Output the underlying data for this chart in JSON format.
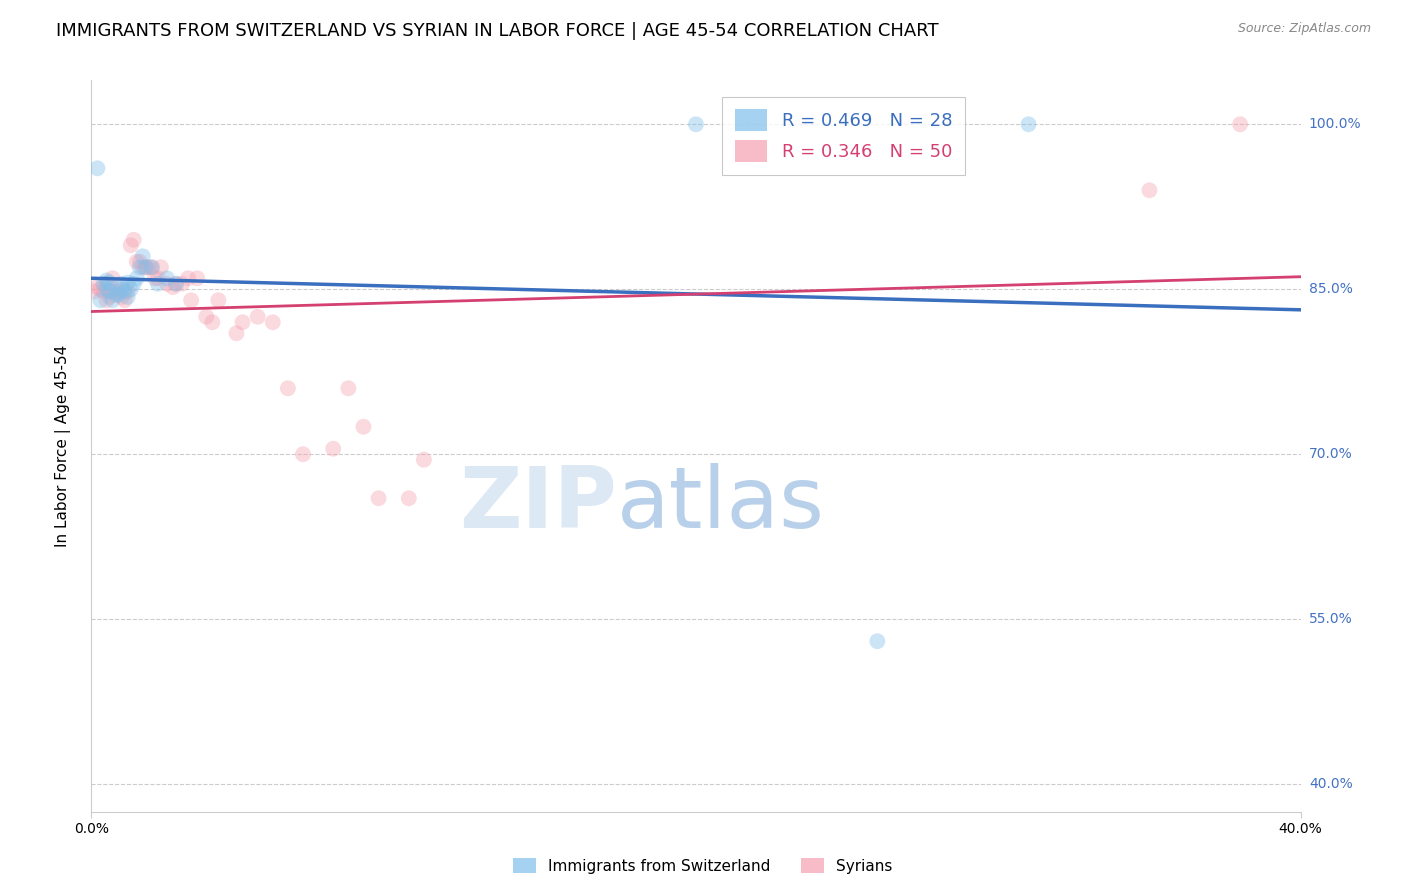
{
  "title": "IMMIGRANTS FROM SWITZERLAND VS SYRIAN IN LABOR FORCE | AGE 45-54 CORRELATION CHART",
  "source": "Source: ZipAtlas.com",
  "ylabel": "In Labor Force | Age 45-54",
  "yticks": [
    0.4,
    0.55,
    0.7,
    0.85,
    1.0
  ],
  "ytick_labels": [
    "40.0%",
    "55.0%",
    "70.0%",
    "85.0%",
    "100.0%"
  ],
  "xlim": [
    0.0,
    0.4
  ],
  "ylim": [
    0.375,
    1.04
  ],
  "swiss_R": 0.469,
  "swiss_N": 28,
  "syrian_R": 0.346,
  "syrian_N": 50,
  "swiss_color": "#7fbfea",
  "syrian_color": "#f4a0b0",
  "swiss_line_color": "#3a6fbf",
  "syrian_line_color": "#d44070",
  "background_color": "#ffffff",
  "grid_color": "#cccccc",
  "axis_color": "#cccccc",
  "right_tick_color": "#4472c4",
  "title_fontsize": 13,
  "axis_label_fontsize": 11,
  "tick_fontsize": 10,
  "marker_size": 130,
  "marker_alpha": 0.4,
  "swiss_x": [
    0.002,
    0.003,
    0.004,
    0.005,
    0.005,
    0.006,
    0.006,
    0.007,
    0.008,
    0.009,
    0.01,
    0.01,
    0.011,
    0.012,
    0.012,
    0.013,
    0.014,
    0.015,
    0.016,
    0.017,
    0.018,
    0.02,
    0.022,
    0.025,
    0.028,
    0.2,
    0.26,
    0.31
  ],
  "swiss_y": [
    0.96,
    0.84,
    0.855,
    0.85,
    0.858,
    0.848,
    0.856,
    0.84,
    0.845,
    0.845,
    0.85,
    0.855,
    0.848,
    0.856,
    0.843,
    0.85,
    0.855,
    0.86,
    0.87,
    0.88,
    0.87,
    0.87,
    0.855,
    0.86,
    0.855,
    1.0,
    0.53,
    1.0
  ],
  "syrian_x": [
    0.001,
    0.002,
    0.003,
    0.004,
    0.005,
    0.005,
    0.006,
    0.006,
    0.007,
    0.008,
    0.009,
    0.01,
    0.011,
    0.011,
    0.012,
    0.013,
    0.014,
    0.015,
    0.016,
    0.017,
    0.018,
    0.019,
    0.02,
    0.021,
    0.022,
    0.023,
    0.025,
    0.027,
    0.028,
    0.03,
    0.032,
    0.033,
    0.035,
    0.038,
    0.04,
    0.042,
    0.048,
    0.05,
    0.055,
    0.06,
    0.065,
    0.07,
    0.08,
    0.085,
    0.09,
    0.095,
    0.105,
    0.11,
    0.35,
    0.38
  ],
  "syrian_y": [
    0.848,
    0.852,
    0.85,
    0.848,
    0.855,
    0.84,
    0.843,
    0.848,
    0.86,
    0.848,
    0.848,
    0.843,
    0.84,
    0.85,
    0.848,
    0.89,
    0.895,
    0.875,
    0.875,
    0.87,
    0.87,
    0.87,
    0.87,
    0.86,
    0.86,
    0.87,
    0.855,
    0.852,
    0.855,
    0.855,
    0.86,
    0.84,
    0.86,
    0.825,
    0.82,
    0.84,
    0.81,
    0.82,
    0.825,
    0.82,
    0.76,
    0.7,
    0.705,
    0.76,
    0.725,
    0.66,
    0.66,
    0.695,
    0.94,
    1.0
  ],
  "watermark_zip": "ZIP",
  "watermark_atlas": "atlas"
}
